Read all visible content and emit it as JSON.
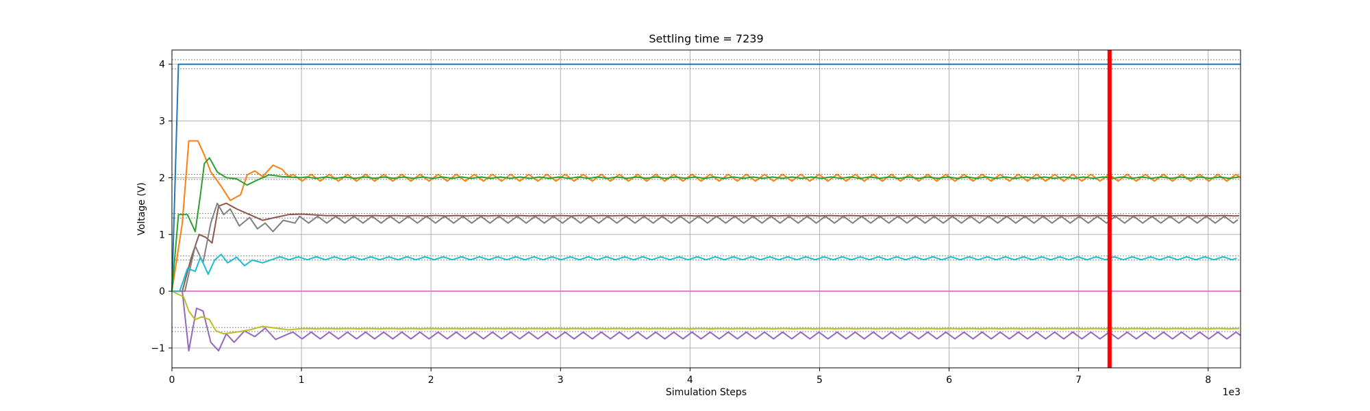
{
  "chart_data": {
    "type": "line",
    "title": "Settling time = 7239",
    "xlabel": "Simulation Steps",
    "ylabel": "Voltage (V)",
    "x_scale_label": "1e3",
    "xlim": [
      0,
      8250
    ],
    "ylim": [
      -1.35,
      4.25
    ],
    "x_ticks": [
      0,
      1000,
      2000,
      3000,
      4000,
      5000,
      6000,
      7000,
      8000
    ],
    "x_tick_labels": [
      "0",
      "1",
      "2",
      "3",
      "4",
      "5",
      "6",
      "7",
      "8"
    ],
    "y_ticks": [
      -1,
      0,
      1,
      2,
      3,
      4
    ],
    "y_tick_labels": [
      "−1",
      "0",
      "1",
      "2",
      "3",
      "4"
    ],
    "grid": true,
    "legend": "none",
    "settling_time": 7239,
    "settling_line_color": "#ff0000",
    "series": [
      {
        "color": "#1f77b4",
        "target": 4.0,
        "transient": [
          [
            0,
            0
          ],
          [
            50,
            4.0
          ]
        ],
        "osc_amp": 0,
        "period": 200,
        "osc_decay": 0
      },
      {
        "color": "#ff7f0e",
        "target": 2.0,
        "transient": [
          [
            0,
            0
          ],
          [
            80,
            1.2
          ],
          [
            130,
            2.65
          ],
          [
            200,
            2.65
          ],
          [
            250,
            2.4
          ],
          [
            300,
            2.1
          ],
          [
            380,
            1.85
          ],
          [
            450,
            1.6
          ],
          [
            530,
            1.7
          ],
          [
            580,
            2.05
          ],
          [
            640,
            2.12
          ],
          [
            700,
            2.02
          ],
          [
            780,
            2.22
          ],
          [
            850,
            2.15
          ],
          [
            900,
            2.02
          ]
        ],
        "osc_amp": 0.06,
        "period": 140,
        "osc_decay": 0
      },
      {
        "color": "#2ca02c",
        "target": 2.0,
        "transient": [
          [
            0,
            0
          ],
          [
            50,
            1.35
          ],
          [
            120,
            1.35
          ],
          [
            180,
            1.05
          ],
          [
            220,
            1.7
          ],
          [
            250,
            2.25
          ],
          [
            290,
            2.35
          ],
          [
            350,
            2.1
          ],
          [
            420,
            2.0
          ],
          [
            500,
            1.98
          ],
          [
            580,
            1.87
          ],
          [
            650,
            1.95
          ],
          [
            750,
            2.05
          ],
          [
            850,
            2.02
          ],
          [
            1000,
            2.0
          ]
        ],
        "osc_amp": 0.012,
        "period": 150,
        "osc_decay": 0
      },
      {
        "color": "#9467bd",
        "target": -0.78,
        "transient": [
          [
            0,
            0
          ],
          [
            80,
            0
          ],
          [
            130,
            -1.05
          ],
          [
            190,
            -0.3
          ],
          [
            240,
            -0.35
          ],
          [
            300,
            -0.9
          ],
          [
            360,
            -1.05
          ],
          [
            420,
            -0.75
          ],
          [
            480,
            -0.9
          ],
          [
            560,
            -0.7
          ],
          [
            640,
            -0.8
          ],
          [
            720,
            -0.65
          ],
          [
            800,
            -0.85
          ],
          [
            900,
            -0.75
          ]
        ],
        "osc_amp": 0.06,
        "period": 140,
        "osc_decay": 0
      },
      {
        "color": "#8c564b",
        "target": 1.33,
        "transient": [
          [
            0,
            0
          ],
          [
            80,
            0
          ],
          [
            150,
            0.6
          ],
          [
            210,
            1.0
          ],
          [
            260,
            0.95
          ],
          [
            310,
            0.85
          ],
          [
            360,
            1.5
          ],
          [
            420,
            1.55
          ],
          [
            500,
            1.45
          ],
          [
            600,
            1.35
          ],
          [
            700,
            1.25
          ],
          [
            800,
            1.3
          ],
          [
            900,
            1.35
          ],
          [
            1000,
            1.36
          ],
          [
            1200,
            1.33
          ]
        ],
        "osc_amp": 0.004,
        "period": 160,
        "osc_decay": 0
      },
      {
        "color": "#e377c2",
        "target": 0.0,
        "transient": [
          [
            0,
            0
          ]
        ],
        "osc_amp": 0,
        "period": 200,
        "osc_decay": 0
      },
      {
        "color": "#7f7f7f",
        "target": 1.26,
        "transient": [
          [
            0,
            0
          ],
          [
            100,
            0
          ],
          [
            180,
            0.8
          ],
          [
            240,
            0.5
          ],
          [
            300,
            1.2
          ],
          [
            350,
            1.55
          ],
          [
            400,
            1.35
          ],
          [
            450,
            1.45
          ],
          [
            520,
            1.15
          ],
          [
            600,
            1.3
          ],
          [
            660,
            1.1
          ],
          [
            720,
            1.2
          ],
          [
            780,
            1.05
          ],
          [
            860,
            1.25
          ],
          [
            950,
            1.2
          ]
        ],
        "osc_amp": 0.06,
        "period": 140,
        "osc_decay": 0
      },
      {
        "color": "#bcbd22",
        "target": -0.66,
        "transient": [
          [
            0,
            0
          ],
          [
            90,
            -0.1
          ],
          [
            130,
            -0.35
          ],
          [
            180,
            -0.5
          ],
          [
            230,
            -0.45
          ],
          [
            290,
            -0.5
          ],
          [
            340,
            -0.7
          ],
          [
            400,
            -0.75
          ],
          [
            500,
            -0.72
          ],
          [
            600,
            -0.68
          ],
          [
            700,
            -0.62
          ],
          [
            800,
            -0.65
          ],
          [
            900,
            -0.68
          ],
          [
            1000,
            -0.66
          ]
        ],
        "osc_amp": 0.003,
        "period": 160,
        "osc_decay": 0
      },
      {
        "color": "#17becf",
        "target": 0.58,
        "transient": [
          [
            0,
            0
          ],
          [
            60,
            0
          ],
          [
            120,
            0.4
          ],
          [
            180,
            0.35
          ],
          [
            220,
            0.6
          ],
          [
            280,
            0.3
          ],
          [
            330,
            0.55
          ],
          [
            380,
            0.65
          ],
          [
            430,
            0.5
          ],
          [
            500,
            0.6
          ],
          [
            560,
            0.45
          ],
          [
            620,
            0.55
          ],
          [
            700,
            0.5
          ],
          [
            800,
            0.58
          ]
        ],
        "osc_amp": 0.025,
        "period": 140,
        "osc_decay": 0
      }
    ],
    "tolerance_bands": [
      {
        "lo": 3.92,
        "hi": 4.08
      },
      {
        "lo": 1.97,
        "hi": 2.06
      },
      {
        "lo": 1.29,
        "hi": 1.37
      },
      {
        "lo": 0.55,
        "hi": 0.62
      },
      {
        "lo": -0.71,
        "hi": -0.64
      }
    ]
  }
}
